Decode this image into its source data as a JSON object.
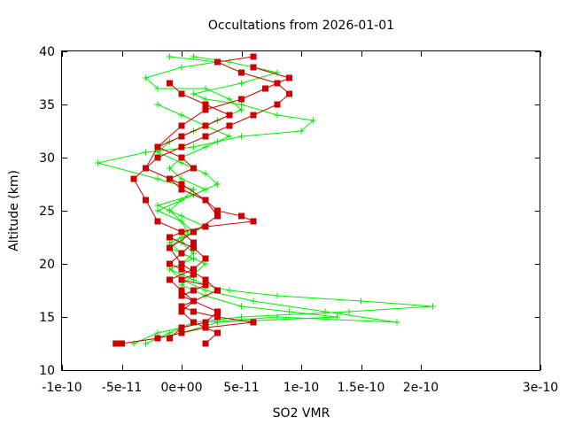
{
  "chart_data": {
    "type": "line",
    "title": "Occultations from 2026-01-01",
    "xlabel": "SO2 VMR",
    "ylabel": "Altitude (km)",
    "xlim": [
      -1e-10,
      3e-10
    ],
    "ylim": [
      10,
      40
    ],
    "x_ticks": [
      {
        "value": -1e-10,
        "label": "-1e-10"
      },
      {
        "value": -5e-11,
        "label": "-5e-11"
      },
      {
        "value": 0,
        "label": "0e+00"
      },
      {
        "value": 5e-11,
        "label": "5e-11"
      },
      {
        "value": 1e-10,
        "label": "1e-10"
      },
      {
        "value": 1.5e-10,
        "label": "1.5e-10"
      },
      {
        "value": 2e-10,
        "label": "2e-10"
      },
      {
        "value": 3e-10,
        "label": "3e-10"
      }
    ],
    "y_ticks": [
      {
        "value": 10,
        "label": "10"
      },
      {
        "value": 15,
        "label": "15"
      },
      {
        "value": 20,
        "label": "20"
      },
      {
        "value": 25,
        "label": "25"
      },
      {
        "value": 30,
        "label": "30"
      },
      {
        "value": 35,
        "label": "35"
      },
      {
        "value": 40,
        "label": "40"
      }
    ],
    "grid": false,
    "legend": null,
    "series": [
      {
        "name": "green-profiles",
        "color": "#00ee00",
        "marker": "plus",
        "profiles": [
          {
            "x": [
              -3e-11,
              -2e-11,
              -1e-11,
              0,
              1e-11,
              5e-11,
              1.4e-10,
              2.1e-10,
              1.5e-10,
              8e-11,
              4e-11,
              2e-11,
              1e-11,
              0,
              -1e-11,
              0,
              1e-11,
              0,
              5e-12,
              0,
              -1e-11,
              0,
              1e-11,
              -2e-11,
              -7e-11,
              -3e-11,
              1e-11,
              3e-11,
              5e-11,
              1e-10,
              1.1e-10,
              8e-11,
              5e-11,
              2e-11,
              1e-11,
              5e-11,
              8e-11,
              4e-11,
              1e-11
            ],
            "y": [
              12.5,
              13,
              13.5,
              14,
              14.5,
              15,
              15.5,
              16,
              16.5,
              17,
              17.5,
              18,
              18.5,
              19,
              19.5,
              20,
              21,
              22,
              23,
              24,
              25,
              26,
              27,
              28,
              29.5,
              30.5,
              31,
              31.5,
              32,
              32.5,
              33.5,
              34,
              35,
              35.5,
              36,
              37,
              38,
              39,
              39.5
            ]
          },
          {
            "x": [
              -4e-11,
              -2e-11,
              0,
              2e-11,
              8e-11,
              1.8e-10,
              1.2e-10,
              6e-11,
              2e-11,
              0,
              -1e-11,
              1e-11,
              -1e-11,
              0,
              2e-11,
              0,
              -2e-11,
              1e-11,
              3e-11,
              2e-11,
              0,
              -2e-11,
              -1e-11,
              1e-11,
              3e-11,
              5e-11,
              4e-11,
              2e-11,
              -2e-11,
              -3e-11,
              0,
              3e-11,
              -1e-11
            ],
            "y": [
              12.5,
              13.5,
              14,
              14.5,
              15,
              14.5,
              15.5,
              16.5,
              17.5,
              18.5,
              19.5,
              20.5,
              21.5,
              22.5,
              23.5,
              24.5,
              25.5,
              26.5,
              27.5,
              28.5,
              29.5,
              30.5,
              31.5,
              32.5,
              33.5,
              34.5,
              35.5,
              36.5,
              36.5,
              37.5,
              38.5,
              39,
              39.5
            ]
          },
          {
            "x": [
              -2e-11,
              0,
              3e-11,
              1.3e-10,
              9e-11,
              5e-11,
              2e-11,
              0,
              1e-11,
              2e-11,
              0,
              -1e-11,
              1e-11,
              0,
              -2e-11,
              0,
              2e-11,
              0,
              -1e-11,
              0,
              2e-11,
              4e-11,
              2e-11,
              0,
              -2e-11
            ],
            "y": [
              13,
              13.5,
              14.5,
              15,
              15.5,
              16,
              17,
              18,
              19,
              20,
              21,
              22,
              23,
              24,
              25,
              26,
              27,
              28,
              29,
              30,
              31,
              32,
              33,
              34,
              35
            ]
          }
        ]
      },
      {
        "name": "red-profiles",
        "color": "#cc0000",
        "marker": "square",
        "profiles": [
          {
            "x": [
              -5.5e-11,
              -5e-11,
              -2e-11,
              0,
              2e-11,
              6e-11,
              3e-11,
              1e-11,
              0,
              1e-11,
              0,
              1e-11,
              2e-11,
              0,
              1e-11,
              0,
              -1e-11,
              0,
              1e-11,
              0,
              -2e-11,
              -3e-11,
              -4e-11,
              -2e-11,
              0,
              2e-11,
              4e-11,
              6e-11,
              8e-11,
              9e-11,
              8e-11,
              5e-11,
              3e-11,
              6e-11
            ],
            "y": [
              12.5,
              12.5,
              13,
              13.5,
              14,
              14.5,
              15,
              15.5,
              16,
              16.5,
              17,
              17.5,
              18,
              18.5,
              19,
              19.5,
              20,
              21,
              22,
              23,
              24,
              26,
              28,
              30,
              31,
              32,
              33,
              34,
              35,
              36,
              37,
              38,
              39,
              39.5
            ]
          },
          {
            "x": [
              -1e-11,
              0,
              2e-11,
              3e-11,
              1e-11,
              0,
              -1e-11,
              1e-11,
              2e-11,
              1e-11,
              -1e-11,
              0,
              2e-11,
              6e-11,
              5e-11,
              3e-11,
              2e-11,
              0,
              -1e-11,
              1e-11,
              0,
              -2e-11,
              0,
              2e-11,
              4e-11,
              2e-11,
              0,
              -1e-11
            ],
            "y": [
              13,
              14,
              14.5,
              15.5,
              16.5,
              17.5,
              18.5,
              19.5,
              20.5,
              21.5,
              22.5,
              23,
              23.5,
              24,
              24.5,
              25,
              26,
              27,
              28,
              29,
              30,
              31,
              32,
              33,
              34,
              35,
              36,
              37
            ]
          },
          {
            "x": [
              2e-11,
              3e-11,
              1e-11,
              0,
              1e-11,
              3e-11,
              2e-11,
              0,
              -1e-11,
              1e-11,
              3e-11,
              2e-11,
              0,
              -3e-11,
              -2e-11,
              0,
              2e-11,
              5e-11,
              7e-11,
              9e-11,
              6e-11
            ],
            "y": [
              12.5,
              13.5,
              14.5,
              15.5,
              16.5,
              17.5,
              18.5,
              20,
              21.5,
              23,
              24.5,
              26,
              27.5,
              29,
              31,
              33,
              34.5,
              35.5,
              36.5,
              37.5,
              38.5
            ]
          }
        ]
      }
    ]
  }
}
